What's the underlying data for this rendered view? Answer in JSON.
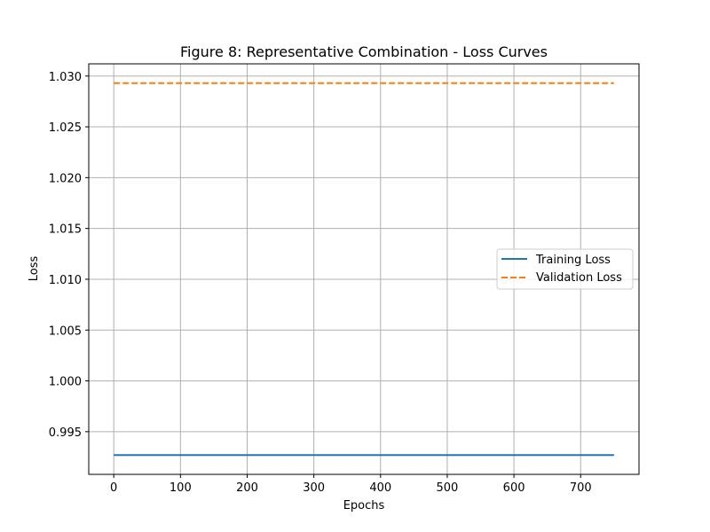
{
  "chart_data": {
    "type": "line",
    "title": "Figure 8: Representative Combination - Loss Curves",
    "xlabel": "Epochs",
    "ylabel": "Loss",
    "xlim": [
      -37.5,
      787.5
    ],
    "ylim": [
      0.9908,
      1.0312
    ],
    "grid": true,
    "legend_position": "center-right",
    "x_ticks": [
      0,
      100,
      200,
      300,
      400,
      500,
      600,
      700
    ],
    "x_tick_labels": [
      "0",
      "100",
      "200",
      "300",
      "400",
      "500",
      "600",
      "700"
    ],
    "y_ticks": [
      0.995,
      1.0,
      1.005,
      1.01,
      1.015,
      1.02,
      1.025,
      1.03
    ],
    "y_tick_labels": [
      "0.995",
      "1.000",
      "1.005",
      "1.010",
      "1.015",
      "1.020",
      "1.025",
      "1.030"
    ],
    "series": [
      {
        "name": "Training Loss",
        "color": "#1f77b4",
        "style": "solid",
        "x": [
          0,
          750
        ],
        "y": [
          0.9927,
          0.9927
        ]
      },
      {
        "name": "Validation Loss",
        "color": "#ff7f0e",
        "style": "dashed",
        "x": [
          0,
          750
        ],
        "y": [
          1.0293,
          1.0293
        ]
      }
    ]
  }
}
